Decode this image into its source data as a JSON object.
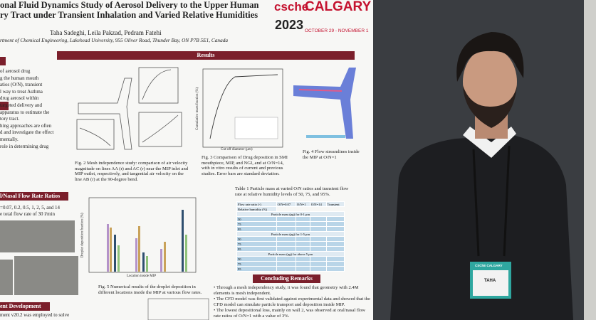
{
  "poster": {
    "title_lines": [
      "onal Fluid Dynamics Study of Aerosol Delivery to the Upper Human",
      "ry Tract under Transient Inhalation and Varied Relative Humidities"
    ],
    "authors": "Taha Sadeghi, Leila Pakzad, Pedram Fatehi",
    "affiliation": "rtment of Chemical Engineering, Lakehead University, 955 Oliver Road, Thunder Bay, ON P7B 5E1, Canada",
    "logo": {
      "org": "csche",
      "city": "CALGARY",
      "year": "2023",
      "dates": "OCTOBER 29 - NOVEMBER 1"
    },
    "sections": {
      "results": "Results",
      "conclusions": "Concluding Remarks",
      "flow_rates": "l/Nasal Flow Rate Ratios",
      "development": "ent Development"
    },
    "left_text": [
      "of aerosol drug",
      "g the human mouth",
      "atios (O/N), transient",
      "l way to treat Asthma",
      "drug aerosol within",
      "targeted delivery and",
      "apparatus to estimate the",
      "tory tract.",
      "hing approaches are often",
      "d and investigate the effect",
      "mentally.",
      "role in determining drug"
    ],
    "flow_text": [
      "=0.07, 0.2, 0.5, 1, 2, 5, and 14",
      "e total flow rate of 30 l/min"
    ],
    "development_text": "ment v20.2 was employed to solve",
    "captions": {
      "fig2": "Fig. 2 Mesh independence study: comparison of air velocity magnitude on lines AA (r) and AC (r) near the MIP inlet and MIP outlet, respectively, and tangential air velocity on the line AB (r) at the 90-degree bend.",
      "fig3": "Fig. 3 Comparison of Drug deposition in SMI mouthpiece, MIP, and NGI, and at O/N=14, with in vitro results of current and previous studies. Error bars are standard deviation.",
      "fig4": "Fig. 4 Flow streamlines inside the MIP at O/N=1",
      "fig5": "Fig. 5 Numerical results of the droplet deposition in different locations inside the MIP at various flow rates.",
      "table1": "Table 1 Particle mass at varied O/N ratios and transient flow rate at relative humidity levels of 50, 75, and 95%."
    },
    "axes": {
      "fig3_x": "Cut-off diameter (μm)",
      "fig3_y": "Cumulative mass fraction (%)",
      "fig5_x": "Location inside MIP",
      "fig5_y": "Droplet deposition fraction (%)"
    },
    "table": {
      "headers": [
        "Flow rate ratio (-)",
        "O/N=0.07",
        "O/N=1",
        "O/N=14",
        "Transient"
      ],
      "row_label": "Relative humidity (%)",
      "bands": [
        "Particle mass (pg) for 0-1 μm",
        "Particle mass (pg) for 1-5 μm",
        "Particle mass (pg) for above 5 μm"
      ],
      "humidities": [
        "50",
        "75",
        "95"
      ]
    },
    "conclusions_text": [
      "Through a mesh independency study, it was found that geometry with 2.4M elements is mesh independent.",
      "The CFD model was first validated against experimental data and showed that the CFD model can simulate particle transport and deposition inside MIP.",
      "The lowest depositional loss, mainly on wall 2, was observed at oral/nasal flow rate ratios of O/N=1 with a value of 3%."
    ]
  },
  "badge": {
    "org": "CSChE CALGARY",
    "name": "TAHA"
  }
}
